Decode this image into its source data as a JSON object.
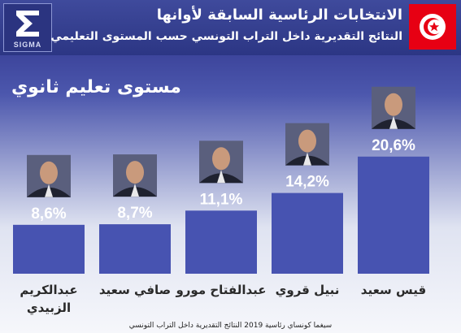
{
  "header": {
    "title": "الانتخابات الرئاسية السابقة لأوانها",
    "subtitle": "النتائج التقديرية داخل التراب التونسي حسب المستوى التعليمي",
    "logo_text": "SIGMA"
  },
  "section_label": "مستوى تعليم ثانوي",
  "chart_data": {
    "type": "bar",
    "categories": [
      [
        "عبدالكريم",
        "الزبيدي"
      ],
      [
        "صافي سعيد"
      ],
      [
        "عبدالفتاح مورو"
      ],
      [
        "نبيل قروي"
      ],
      [
        "قيس سعيد"
      ]
    ],
    "values": [
      8.6,
      8.7,
      11.1,
      14.2,
      20.6
    ],
    "value_labels": [
      "8,6%",
      "8,7%",
      "11,1%",
      "14,2%",
      "20,6%"
    ],
    "ylim": [
      0,
      25
    ],
    "colors": {
      "bar": "#4753b1",
      "label": "#ffffff"
    }
  },
  "footer": "سيغما كونساي   رئاسية 2019   النتائج التقديرية داخل التراب التونسي"
}
